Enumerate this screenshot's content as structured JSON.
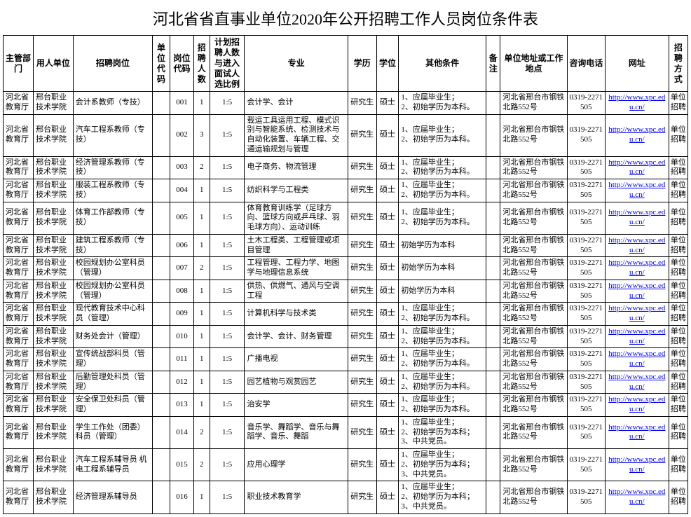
{
  "title": "河北省省直事业单位2020年公开招聘工作人员岗位条件表",
  "headers": {
    "dept": "主管部门",
    "unit": "用人单位",
    "job": "招聘岗位",
    "ucode": "单位代码",
    "pcode": "岗位代码",
    "num": "招聘人数",
    "ratio": "计划招聘人数与进入面试人选比例",
    "major": "专业",
    "edu": "学历",
    "degree": "学位",
    "other": "其他条件",
    "note": "备注",
    "addr": "单位地址或工作地点",
    "tel": "咨询电话",
    "url": "网址",
    "method": "招聘方式"
  },
  "common": {
    "dept": "河北省教育厅",
    "unit": "邢台职业技术学院",
    "edu": "研究生",
    "degree": "硕士",
    "addr": "河北省邢台市钢铁北路552号",
    "tel": "0319-2271505",
    "url": "http://www.xpc.edu.cn/",
    "method": "单位招聘",
    "cond_std": "1、应届毕业生；\n2、初始学历为本科。",
    "cond_init": "初始学历为本科",
    "cond_party": "1、应届毕业生；\n2、初始学历为本科；\n3、中共党员。"
  },
  "rows": [
    {
      "job": "会计系教师（专技）",
      "pcode": "001",
      "num": "1",
      "ratio": "1:5",
      "major": "会计学、会计",
      "other_key": "cond_std"
    },
    {
      "job": "汽车工程系教师（专技）",
      "pcode": "002",
      "num": "3",
      "ratio": "1:5",
      "major": "载运工具运用工程、模式识别与智能系统、检测技术与自动化装置、车辆工程、交通运输规划与管理",
      "other_key": "cond_std"
    },
    {
      "job": "经济管理系教师（专技）",
      "pcode": "003",
      "num": "2",
      "ratio": "1:5",
      "major": "电子商务、物流管理",
      "other_key": "cond_std"
    },
    {
      "job": "服装工程系教师（专技）",
      "pcode": "004",
      "num": "1",
      "ratio": "1:5",
      "major": "纺织科学与工程类",
      "other_key": "cond_std"
    },
    {
      "job": "体育工作部教师（专技）",
      "pcode": "005",
      "num": "1",
      "ratio": "1:5",
      "major": "体育教育训练学（足球方向、篮球方向或乒乓球、羽毛球方向）、运动训练",
      "other_key": "cond_std"
    },
    {
      "job": "建筑工程系教师（专技）",
      "pcode": "006",
      "num": "1",
      "ratio": "1:5",
      "major": "土木工程类、工程管理或项目管理",
      "other_key": "cond_init"
    },
    {
      "job": "校园规划办公室科员（管理）",
      "pcode": "007",
      "num": "2",
      "ratio": "1:5",
      "major": "工程管理、工程力学、地图学与地理信息系统",
      "other_key": "cond_init"
    },
    {
      "job": "校园规划办公室科员（管理）",
      "pcode": "008",
      "num": "1",
      "ratio": "1:5",
      "major": "供热、供燃气、通风与空调工程",
      "other_key": "cond_init"
    },
    {
      "job": "现代教育技术中心科员（管理）",
      "pcode": "009",
      "num": "1",
      "ratio": "1:5",
      "major": "计算机科学与技术类",
      "other_key": "cond_std"
    },
    {
      "job": "财务处会计（管理）",
      "pcode": "010",
      "num": "1",
      "ratio": "1:5",
      "major": "会计学、会计、财务管理",
      "other_key": "cond_std"
    },
    {
      "job": "宣传统战部科员（管理）",
      "pcode": "011",
      "num": "1",
      "ratio": "1:5",
      "major": "广播电视",
      "other_key": "cond_std"
    },
    {
      "job": "后勤管理处科员（管理）",
      "pcode": "012",
      "num": "1",
      "ratio": "1:5",
      "major": "园艺植物与观赏园艺",
      "other_key": "cond_std"
    },
    {
      "job": "安全保卫处科员（管理）",
      "pcode": "013",
      "num": "1",
      "ratio": "1:5",
      "major": "治安学",
      "other_key": "cond_std"
    },
    {
      "job": "学生工作处（团委）科员（管理）",
      "pcode": "014",
      "num": "2",
      "ratio": "1:5",
      "major": "音乐学、舞蹈学、音乐与舞蹈学、音乐、舞蹈",
      "other_key": "cond_party"
    },
    {
      "job": "汽车工程系辅导员 机电工程系辅导员",
      "pcode": "015",
      "num": "2",
      "ratio": "1:5",
      "major": "应用心理学",
      "other_key": "cond_party"
    },
    {
      "job": "经济管理系辅导员",
      "pcode": "016",
      "num": "1",
      "ratio": "1:5",
      "major": "职业技术教育学",
      "other_key": "cond_party"
    }
  ]
}
